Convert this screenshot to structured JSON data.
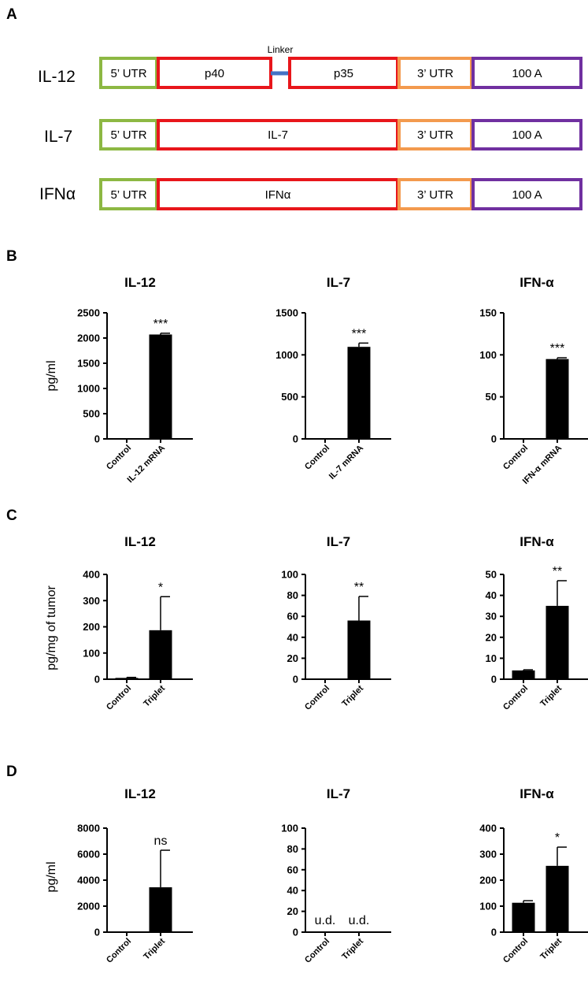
{
  "panels": {
    "a": "A",
    "b": "B",
    "c": "C",
    "d": "D"
  },
  "constructs": [
    {
      "name": "IL-12",
      "segments": [
        "5’ UTR",
        "p40",
        "p35",
        "3’ UTR",
        "100 A"
      ],
      "linker": "Linker"
    },
    {
      "name": "IL-7",
      "segments": [
        "5’ UTR",
        "IL-7",
        "3’ UTR",
        "100 A"
      ]
    },
    {
      "name": "IFNα",
      "segments": [
        "5’ UTR",
        "IFNα",
        "3’ UTR",
        "100 A"
      ]
    }
  ],
  "colors": {
    "utr5": "#8db843",
    "cds": "#e8161b",
    "utr3": "#f39a4e",
    "polyA": "#7030a0",
    "linker": "#4472c4",
    "bar": "#000000"
  },
  "row_ylabels": {
    "b": "pg/ml",
    "c": "pg/mg of tumor",
    "d": "pg/ml"
  },
  "chart_data": [
    {
      "id": "b1",
      "type": "bar",
      "title": "IL-12",
      "categories": [
        "Control",
        "IL-12 mRNA"
      ],
      "values": [
        0,
        2070
      ],
      "errors": [
        0,
        25
      ],
      "ylim": [
        0,
        2500
      ],
      "yticks": [
        0,
        500,
        1000,
        1500,
        2000,
        2500
      ],
      "significance": [
        "",
        "***"
      ],
      "annotations": [
        "",
        ""
      ]
    },
    {
      "id": "b2",
      "type": "bar",
      "title": "IL-7",
      "categories": [
        "Control",
        "IL-7 mRNA"
      ],
      "values": [
        0,
        1095
      ],
      "errors": [
        0,
        45
      ],
      "ylim": [
        0,
        1500
      ],
      "yticks": [
        0,
        500,
        1000,
        1500
      ],
      "significance": [
        "",
        "***"
      ],
      "annotations": [
        "",
        ""
      ]
    },
    {
      "id": "b3",
      "type": "bar",
      "title": "IFN-α",
      "categories": [
        "Control",
        "IFN-α mRNA"
      ],
      "values": [
        0,
        95
      ],
      "errors": [
        0,
        1.5
      ],
      "ylim": [
        0,
        150
      ],
      "yticks": [
        0,
        50,
        100,
        150
      ],
      "significance": [
        "",
        "***"
      ],
      "annotations": [
        "",
        ""
      ]
    },
    {
      "id": "c1",
      "type": "bar",
      "title": "IL-12",
      "categories": [
        "Control",
        "Triplet"
      ],
      "values": [
        5,
        187
      ],
      "errors": [
        2,
        128
      ],
      "ylim": [
        0,
        400
      ],
      "yticks": [
        0,
        100,
        200,
        300,
        400
      ],
      "significance": [
        "",
        "*"
      ],
      "annotations": [
        "",
        ""
      ]
    },
    {
      "id": "c2",
      "type": "bar",
      "title": "IL-7",
      "categories": [
        "Control",
        "Triplet"
      ],
      "values": [
        0,
        56
      ],
      "errors": [
        0,
        23
      ],
      "ylim": [
        0,
        100
      ],
      "yticks": [
        0,
        20,
        40,
        60,
        80,
        100
      ],
      "significance": [
        "",
        "**"
      ],
      "annotations": [
        "",
        ""
      ]
    },
    {
      "id": "c3",
      "type": "bar",
      "title": "IFN-α",
      "categories": [
        "Control",
        "Triplet"
      ],
      "values": [
        4.2,
        35
      ],
      "errors": [
        0.3,
        12
      ],
      "ylim": [
        0,
        50
      ],
      "yticks": [
        0,
        10,
        20,
        30,
        40,
        50
      ],
      "significance": [
        "",
        "**"
      ],
      "annotations": [
        "",
        ""
      ]
    },
    {
      "id": "d1",
      "type": "bar",
      "title": "IL-12",
      "categories": [
        "Control",
        "Triplet"
      ],
      "values": [
        0,
        3450
      ],
      "errors": [
        0,
        2850
      ],
      "ylim": [
        0,
        8000
      ],
      "yticks": [
        0,
        2000,
        4000,
        6000,
        8000
      ],
      "significance": [
        "",
        "ns"
      ],
      "annotations": [
        "",
        ""
      ]
    },
    {
      "id": "d2",
      "type": "bar",
      "title": "IL-7",
      "categories": [
        "Control",
        "Triplet"
      ],
      "values": [
        0,
        0
      ],
      "errors": [
        0,
        0
      ],
      "ylim": [
        0,
        100
      ],
      "yticks": [
        0,
        20,
        40,
        60,
        80,
        100
      ],
      "significance": [
        "",
        ""
      ],
      "annotations": [
        "u.d.",
        "u.d."
      ]
    },
    {
      "id": "d3",
      "type": "bar",
      "title": "IFN-α",
      "categories": [
        "Control",
        "Triplet"
      ],
      "values": [
        113,
        255
      ],
      "errors": [
        8,
        72
      ],
      "ylim": [
        0,
        400
      ],
      "yticks": [
        0,
        100,
        200,
        300,
        400
      ],
      "significance": [
        "",
        "*"
      ],
      "annotations": [
        "",
        ""
      ]
    }
  ]
}
